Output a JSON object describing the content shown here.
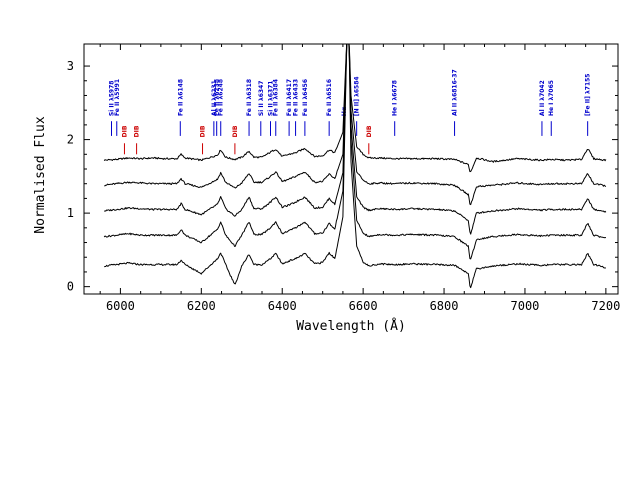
{
  "chart_data": {
    "type": "line",
    "title": "",
    "xlabel": "Wavelength (Å)",
    "ylabel": "Normalised Flux",
    "xlim": [
      5910,
      7230
    ],
    "ylim": [
      -0.1,
      3.3
    ],
    "xticks": [
      6000,
      6200,
      6400,
      6600,
      6800,
      7000,
      7200
    ],
    "yticks": [
      0,
      1,
      2,
      3
    ],
    "grid": false,
    "legend": "none",
    "colors": {
      "line_id": "#0000cc",
      "dib": "#cc0000",
      "spectrum": "#000000"
    },
    "line_ids": [
      {
        "label": "Si II λ5978",
        "wl": 5978
      },
      {
        "label": "Fe II λ5991",
        "wl": 5991
      },
      {
        "label": "Fe II λ6148",
        "wl": 6148
      },
      {
        "label": "Al II λ6231",
        "wl": 6231
      },
      {
        "label": "Fe II λ6238",
        "wl": 6238
      },
      {
        "label": "Fe II λ6248",
        "wl": 6248
      },
      {
        "label": "Fe II λ6318",
        "wl": 6318
      },
      {
        "label": "Si II λ6347",
        "wl": 6347
      },
      {
        "label": "Si II λ6371",
        "wl": 6371
      },
      {
        "label": "Fe II λ6384",
        "wl": 6384
      },
      {
        "label": "Fe II λ6417",
        "wl": 6417
      },
      {
        "label": "Fe II λ6433",
        "wl": 6433
      },
      {
        "label": "Fe II λ6456",
        "wl": 6456
      },
      {
        "label": "Fe II λ6516",
        "wl": 6516
      },
      {
        "label": "Hα",
        "wl": 6553
      },
      {
        "label": "[N II] λ6584",
        "wl": 6584
      },
      {
        "label": "He I λ6678",
        "wl": 6678
      },
      {
        "label": "Al II λ6816-37",
        "wl": 6826
      },
      {
        "label": "Al II λ7042",
        "wl": 7042
      },
      {
        "label": "He I λ7065",
        "wl": 7065
      },
      {
        "label": "[Fe II] λ7155",
        "wl": 7155
      }
    ],
    "dibs": [
      {
        "label": "DIB",
        "wl": 6010
      },
      {
        "label": "DIB",
        "wl": 6040
      },
      {
        "label": "DIB",
        "wl": 6203
      },
      {
        "label": "DIB",
        "wl": 6283
      },
      {
        "label": "DIB",
        "wl": 6614
      }
    ],
    "series": [
      {
        "offset": 1.75,
        "emission_scale": 0.5,
        "absorption_scale": 0.2,
        "x": [
          5960,
          5990,
          6020,
          6050,
          6080,
          6110,
          6140,
          6150,
          6160,
          6200,
          6240,
          6248,
          6260,
          6283,
          6300,
          6318,
          6330,
          6350,
          6371,
          6384,
          6400,
          6417,
          6433,
          6456,
          6480,
          6500,
          6516,
          6530,
          6550,
          6560,
          6565,
          6570,
          6584,
          6600,
          6614,
          6640,
          6678,
          6720,
          6780,
          6826,
          6860,
          6865,
          6880,
          6920,
          6980,
          7040,
          7065,
          7100,
          7140,
          7155,
          7170,
          7200
        ],
        "y": [
          1.72,
          1.73,
          1.75,
          1.74,
          1.75,
          1.74,
          1.74,
          1.8,
          1.75,
          1.72,
          1.79,
          1.86,
          1.76,
          1.73,
          1.76,
          1.84,
          1.76,
          1.76,
          1.83,
          1.87,
          1.77,
          1.8,
          1.82,
          1.88,
          1.77,
          1.78,
          1.86,
          1.82,
          2.1,
          3.4,
          3.4,
          2.6,
          1.9,
          1.8,
          1.75,
          1.75,
          1.74,
          1.74,
          1.74,
          1.73,
          1.66,
          1.55,
          1.75,
          1.7,
          1.74,
          1.72,
          1.73,
          1.72,
          1.73,
          1.88,
          1.74,
          1.72
        ]
      },
      {
        "offset": 1.4,
        "emission_scale": 0.65,
        "absorption_scale": 0.4,
        "x": [
          5960,
          5990,
          6020,
          6050,
          6080,
          6110,
          6140,
          6150,
          6160,
          6200,
          6240,
          6248,
          6260,
          6283,
          6300,
          6318,
          6330,
          6350,
          6371,
          6384,
          6400,
          6417,
          6433,
          6456,
          6480,
          6500,
          6516,
          6530,
          6550,
          6560,
          6565,
          6570,
          6584,
          6600,
          6614,
          6640,
          6678,
          6720,
          6780,
          6826,
          6860,
          6865,
          6880,
          6920,
          6980,
          7040,
          7065,
          7100,
          7140,
          7155,
          7170,
          7200
        ],
        "y": [
          1.38,
          1.4,
          1.42,
          1.41,
          1.4,
          1.4,
          1.4,
          1.47,
          1.4,
          1.35,
          1.46,
          1.55,
          1.42,
          1.34,
          1.41,
          1.54,
          1.42,
          1.42,
          1.5,
          1.56,
          1.43,
          1.46,
          1.5,
          1.56,
          1.42,
          1.43,
          1.53,
          1.47,
          1.8,
          3.4,
          3.4,
          2.4,
          1.56,
          1.45,
          1.4,
          1.41,
          1.4,
          1.41,
          1.4,
          1.38,
          1.25,
          1.1,
          1.36,
          1.38,
          1.41,
          1.39,
          1.4,
          1.4,
          1.4,
          1.54,
          1.4,
          1.37
        ]
      },
      {
        "offset": 1.05,
        "emission_scale": 0.8,
        "absorption_scale": 0.6,
        "x": [
          5960,
          5990,
          6020,
          6050,
          6080,
          6110,
          6140,
          6150,
          6160,
          6200,
          6240,
          6248,
          6260,
          6283,
          6300,
          6318,
          6330,
          6350,
          6371,
          6384,
          6400,
          6417,
          6433,
          6456,
          6480,
          6500,
          6516,
          6530,
          6550,
          6560,
          6565,
          6570,
          6584,
          6600,
          6614,
          6640,
          6678,
          6720,
          6780,
          6826,
          6860,
          6865,
          6880,
          6920,
          6980,
          7040,
          7065,
          7100,
          7140,
          7155,
          7170,
          7200
        ],
        "y": [
          1.03,
          1.05,
          1.07,
          1.06,
          1.05,
          1.05,
          1.05,
          1.13,
          1.05,
          0.98,
          1.12,
          1.22,
          1.06,
          0.96,
          1.05,
          1.22,
          1.06,
          1.06,
          1.15,
          1.22,
          1.08,
          1.11,
          1.15,
          1.22,
          1.07,
          1.08,
          1.2,
          1.12,
          1.55,
          3.4,
          3.4,
          2.2,
          1.22,
          1.08,
          1.04,
          1.06,
          1.05,
          1.06,
          1.05,
          1.03,
          0.9,
          0.7,
          1.0,
          1.03,
          1.06,
          1.04,
          1.05,
          1.05,
          1.05,
          1.2,
          1.05,
          1.02
        ]
      },
      {
        "offset": 0.7,
        "emission_scale": 0.9,
        "absorption_scale": 0.8,
        "x": [
          5960,
          5990,
          6020,
          6050,
          6080,
          6110,
          6140,
          6150,
          6160,
          6200,
          6240,
          6248,
          6260,
          6283,
          6300,
          6318,
          6330,
          6350,
          6371,
          6384,
          6400,
          6417,
          6433,
          6456,
          6480,
          6500,
          6516,
          6530,
          6550,
          6560,
          6565,
          6570,
          6584,
          6600,
          6614,
          6640,
          6678,
          6720,
          6780,
          6826,
          6860,
          6865,
          6880,
          6920,
          6980,
          7040,
          7065,
          7100,
          7140,
          7155,
          7170,
          7200
        ],
        "y": [
          0.68,
          0.7,
          0.72,
          0.7,
          0.7,
          0.7,
          0.7,
          0.78,
          0.7,
          0.6,
          0.78,
          0.88,
          0.7,
          0.55,
          0.7,
          0.88,
          0.71,
          0.71,
          0.8,
          0.88,
          0.72,
          0.76,
          0.8,
          0.88,
          0.72,
          0.73,
          0.86,
          0.78,
          1.3,
          3.4,
          3.4,
          2.0,
          0.9,
          0.73,
          0.68,
          0.71,
          0.7,
          0.71,
          0.7,
          0.68,
          0.55,
          0.35,
          0.64,
          0.68,
          0.71,
          0.69,
          0.7,
          0.7,
          0.7,
          0.86,
          0.7,
          0.66
        ]
      },
      {
        "offset": 0.3,
        "emission_scale": 1.0,
        "absorption_scale": 1.0,
        "x": [
          5960,
          5990,
          6020,
          6050,
          6080,
          6110,
          6140,
          6150,
          6160,
          6200,
          6240,
          6248,
          6260,
          6283,
          6300,
          6318,
          6330,
          6350,
          6371,
          6384,
          6400,
          6417,
          6433,
          6456,
          6480,
          6500,
          6516,
          6530,
          6550,
          6560,
          6565,
          6570,
          6584,
          6600,
          6614,
          6640,
          6678,
          6720,
          6780,
          6826,
          6860,
          6865,
          6880,
          6920,
          6980,
          7040,
          7065,
          7100,
          7140,
          7155,
          7170,
          7200
        ],
        "y": [
          0.28,
          0.3,
          0.32,
          0.3,
          0.3,
          0.3,
          0.3,
          0.36,
          0.3,
          0.18,
          0.38,
          0.46,
          0.3,
          0.02,
          0.28,
          0.44,
          0.3,
          0.3,
          0.38,
          0.45,
          0.31,
          0.35,
          0.38,
          0.45,
          0.31,
          0.33,
          0.46,
          0.38,
          0.95,
          3.4,
          3.4,
          1.7,
          0.55,
          0.34,
          0.28,
          0.31,
          0.3,
          0.31,
          0.3,
          0.29,
          0.18,
          -0.02,
          0.24,
          0.28,
          0.31,
          0.29,
          0.3,
          0.3,
          0.3,
          0.45,
          0.3,
          0.26
        ]
      }
    ]
  }
}
